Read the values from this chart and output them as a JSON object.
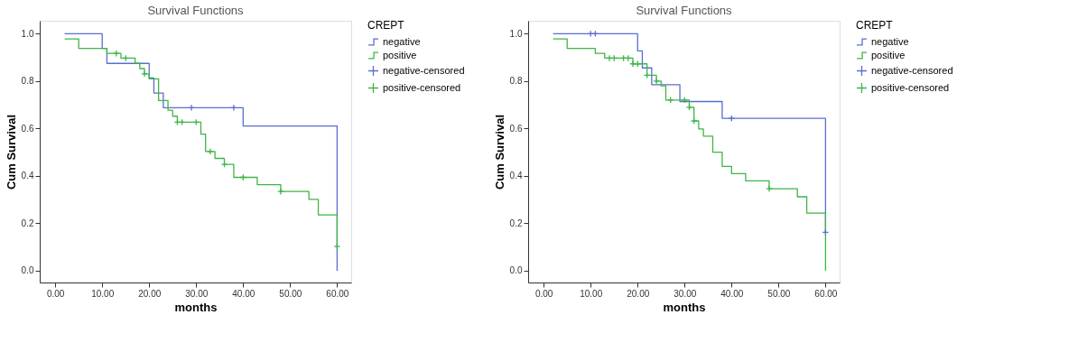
{
  "chart_data": [
    {
      "type": "step",
      "title": "Survival Functions",
      "xlabel": "months",
      "ylabel": "Cum Survival",
      "legend_title": "CREPT",
      "legend": "right",
      "xlim": [
        -3.3,
        63
      ],
      "ylim": [
        -0.05,
        1.055
      ],
      "xticks": [
        {
          "value": 0,
          "label": "0.00"
        },
        {
          "value": 10,
          "label": "10.00"
        },
        {
          "value": 20,
          "label": "20.00"
        },
        {
          "value": 30,
          "label": "30.00"
        },
        {
          "value": 40,
          "label": "40.00"
        },
        {
          "value": 50,
          "label": "50.00"
        },
        {
          "value": 60,
          "label": "60.00"
        }
      ],
      "yticks": [
        {
          "value": 0,
          "label": "0.0"
        },
        {
          "value": 0.2,
          "label": "0.2"
        },
        {
          "value": 0.4,
          "label": "0.4"
        },
        {
          "value": 0.6,
          "label": "0.6"
        },
        {
          "value": 0.8,
          "label": "0.8"
        },
        {
          "value": 1,
          "label": "1.0"
        }
      ],
      "series": [
        {
          "name": "negative",
          "color": "#5a6ed0",
          "x": [
            2,
            10,
            11,
            20,
            21,
            23,
            40,
            60
          ],
          "values": [
            1.0,
            0.938,
            0.875,
            0.813,
            0.75,
            0.688,
            0.611,
            0.0
          ]
        },
        {
          "name": "positive",
          "color": "#3fb548",
          "x": [
            2,
            5,
            11,
            14,
            17,
            18,
            19,
            20,
            22,
            24,
            25,
            26,
            31,
            32,
            34,
            36,
            38,
            43,
            48,
            54,
            56,
            60
          ],
          "values": [
            0.978,
            0.938,
            0.917,
            0.897,
            0.876,
            0.853,
            0.831,
            0.81,
            0.718,
            0.677,
            0.652,
            0.627,
            0.576,
            0.503,
            0.474,
            0.449,
            0.394,
            0.363,
            0.334,
            0.301,
            0.235,
            0.102
          ]
        },
        {
          "name": "negative-censored",
          "type": "scatter",
          "marker": "cross",
          "color": "#5a6ed0",
          "x": [
            29,
            38
          ],
          "values": [
            0.688,
            0.688
          ]
        },
        {
          "name": "positive-censored",
          "type": "scatter",
          "marker": "cross",
          "color": "#3fb548",
          "x": [
            13,
            15,
            19,
            26,
            27,
            30,
            33,
            36,
            40,
            48,
            60
          ],
          "values": [
            0.917,
            0.897,
            0.831,
            0.627,
            0.627,
            0.627,
            0.503,
            0.449,
            0.394,
            0.334,
            0.102
          ]
        }
      ]
    },
    {
      "type": "step",
      "title": "Survival Functions",
      "xlabel": "months",
      "ylabel": "Cum Survival",
      "legend_title": "CREPT",
      "legend": "right",
      "xlim": [
        -3.3,
        63
      ],
      "ylim": [
        -0.05,
        1.055
      ],
      "xticks": [
        {
          "value": 0,
          "label": "0.00"
        },
        {
          "value": 10,
          "label": "10.00"
        },
        {
          "value": 20,
          "label": "20.00"
        },
        {
          "value": 30,
          "label": "30.00"
        },
        {
          "value": 40,
          "label": "40.00"
        },
        {
          "value": 50,
          "label": "50.00"
        },
        {
          "value": 60,
          "label": "60.00"
        }
      ],
      "yticks": [
        {
          "value": 0,
          "label": "0.0"
        },
        {
          "value": 0.2,
          "label": "0.2"
        },
        {
          "value": 0.4,
          "label": "0.4"
        },
        {
          "value": 0.6,
          "label": "0.6"
        },
        {
          "value": 0.8,
          "label": "0.8"
        },
        {
          "value": 1,
          "label": "1.0"
        }
      ],
      "series": [
        {
          "name": "negative",
          "color": "#5a6ed0",
          "x": [
            2,
            20,
            21,
            23,
            29,
            38,
            60
          ],
          "values": [
            1.0,
            0.928,
            0.856,
            0.785,
            0.714,
            0.643,
            0.162
          ]
        },
        {
          "name": "positive",
          "color": "#3fb548",
          "x": [
            2,
            5,
            11,
            13,
            19,
            22,
            24,
            25,
            26,
            31,
            32,
            33,
            34,
            36,
            38,
            40,
            43,
            48,
            54,
            56,
            60
          ],
          "values": [
            0.978,
            0.938,
            0.917,
            0.897,
            0.873,
            0.825,
            0.8,
            0.78,
            0.72,
            0.69,
            0.632,
            0.598,
            0.568,
            0.5,
            0.44,
            0.41,
            0.379,
            0.346,
            0.312,
            0.243,
            0.0
          ]
        },
        {
          "name": "negative-censored",
          "type": "scatter",
          "marker": "cross",
          "color": "#5a6ed0",
          "x": [
            10,
            11,
            40,
            60
          ],
          "values": [
            1.0,
            1.0,
            0.643,
            0.162
          ]
        },
        {
          "name": "positive-censored",
          "type": "scatter",
          "marker": "cross",
          "color": "#3fb548",
          "x": [
            14,
            15,
            17,
            18,
            19,
            20,
            22,
            24,
            27,
            30,
            31,
            32,
            48
          ],
          "values": [
            0.897,
            0.897,
            0.897,
            0.897,
            0.873,
            0.873,
            0.825,
            0.8,
            0.72,
            0.72,
            0.69,
            0.632,
            0.346
          ]
        }
      ]
    }
  ]
}
